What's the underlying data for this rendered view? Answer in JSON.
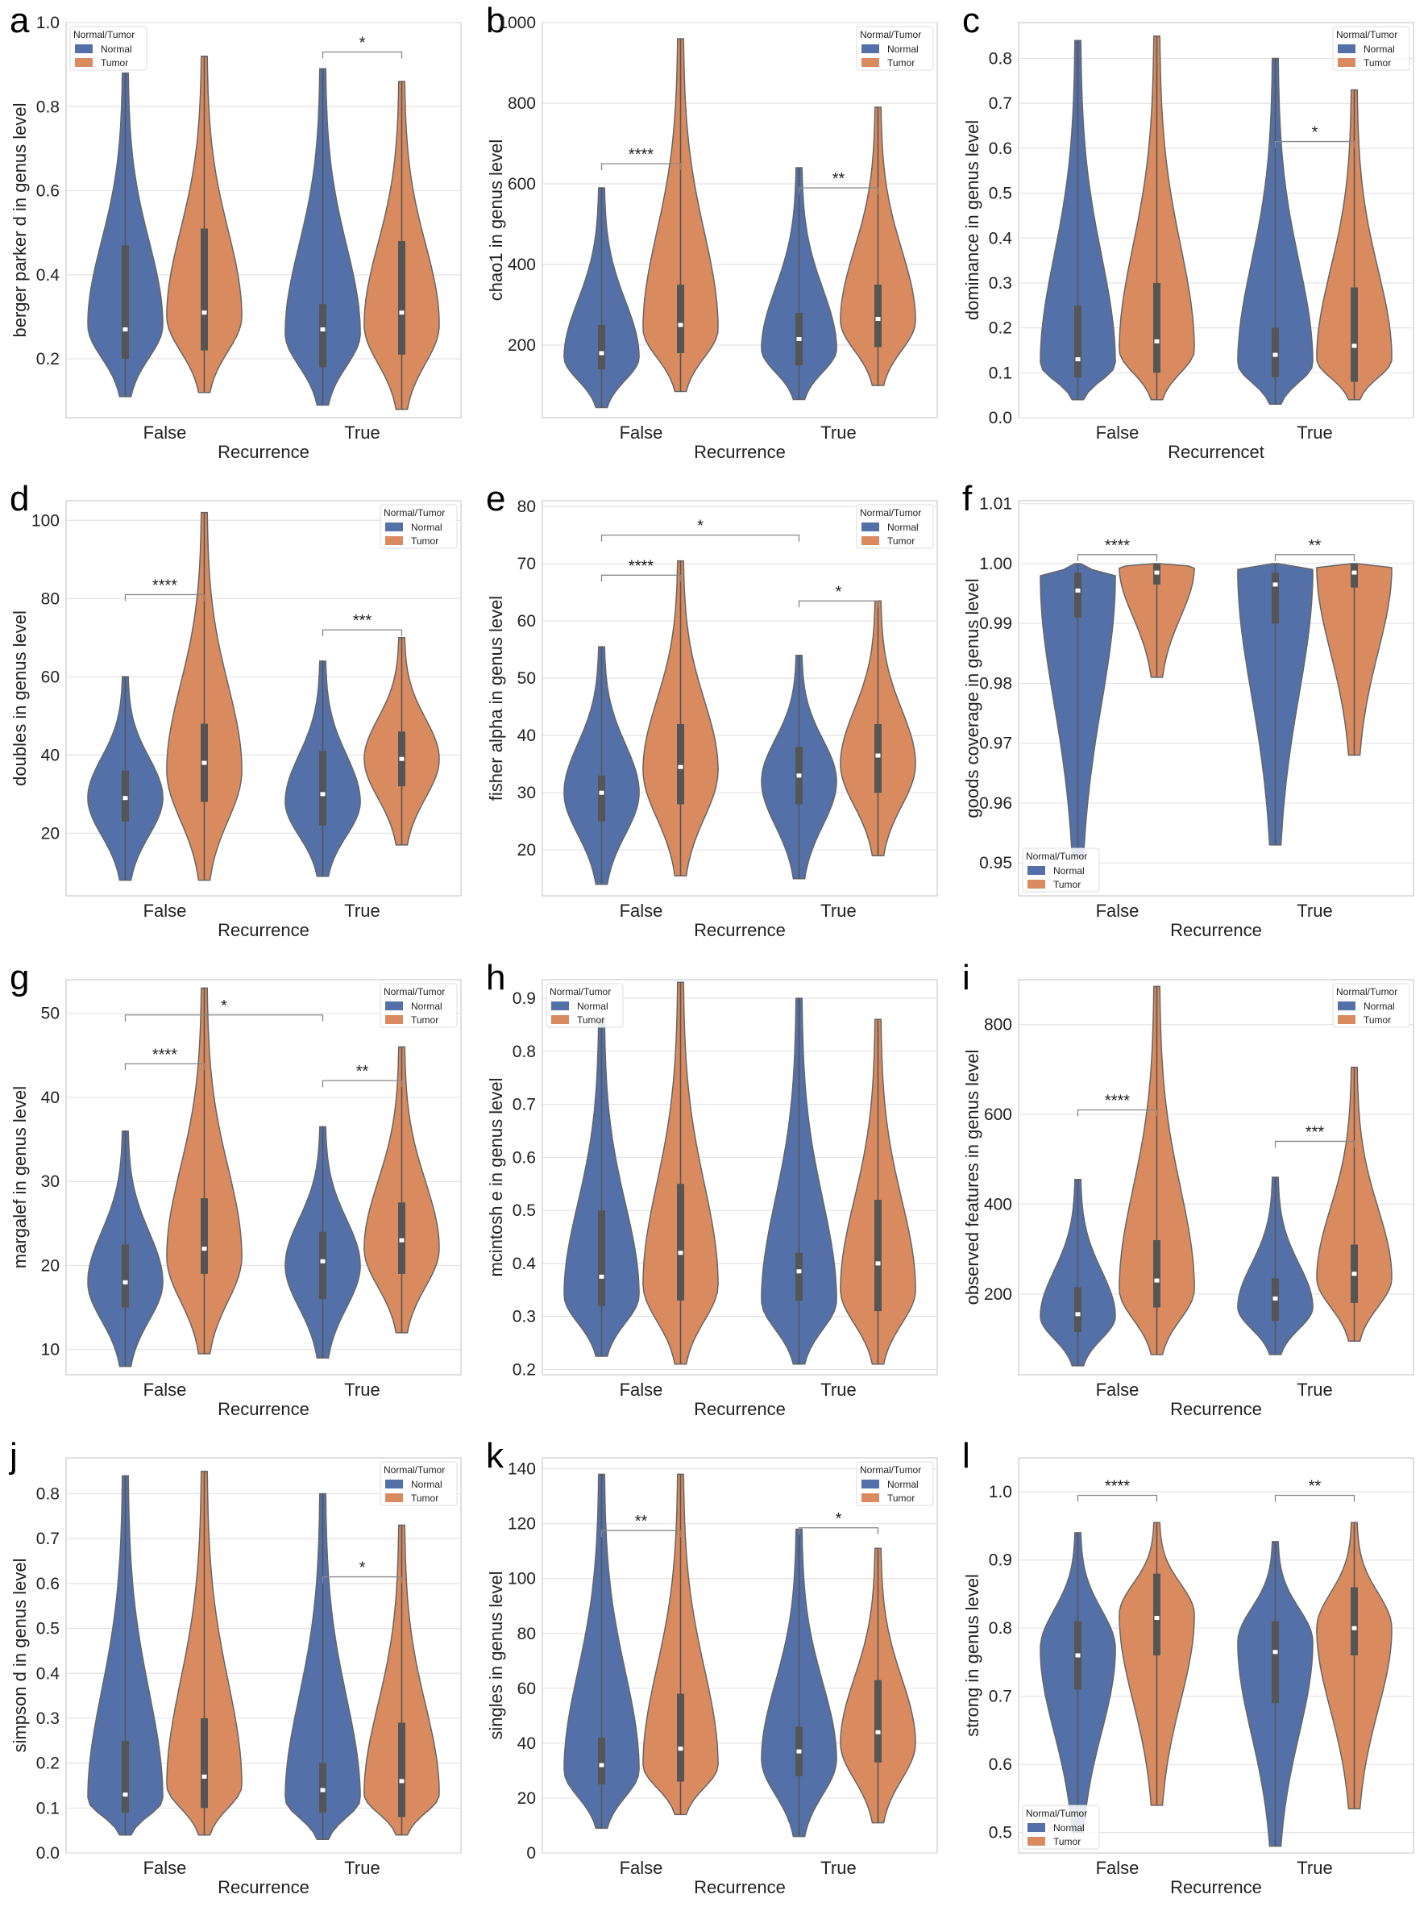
{
  "colors": {
    "normal": "#5470a8",
    "tumor": "#d98b5f",
    "edge": "#666666",
    "grid": "#e3e3e3",
    "frame": "#cccccc"
  },
  "legend": {
    "title": "Normal/Tumor",
    "items": [
      "Normal",
      "Tumor"
    ]
  },
  "chart_data": [
    {
      "letter": "a",
      "type": "violin",
      "ylabel": "berger parker d in genus level",
      "xlabel": "Recurrence",
      "categories": [
        "False",
        "True"
      ],
      "ylim": [
        0.06,
        1.0
      ],
      "yticks": [
        "1.0",
        "0.8",
        "0.6",
        "0.4",
        "0.2"
      ],
      "ytick_values": [
        1.0,
        0.8,
        0.6,
        0.4,
        0.2
      ],
      "legend_position": "top-left",
      "series": [
        {
          "name": "Normal",
          "cat": "False",
          "min": 0.11,
          "max": 0.88,
          "q1": 0.2,
          "median": 0.27,
          "q3": 0.47,
          "peak": 0.28
        },
        {
          "name": "Tumor",
          "cat": "False",
          "min": 0.12,
          "max": 0.92,
          "q1": 0.22,
          "median": 0.31,
          "q3": 0.51,
          "peak": 0.3
        },
        {
          "name": "Normal",
          "cat": "True",
          "min": 0.09,
          "max": 0.89,
          "q1": 0.18,
          "median": 0.27,
          "q3": 0.33,
          "peak": 0.26
        },
        {
          "name": "Tumor",
          "cat": "True",
          "min": 0.08,
          "max": 0.86,
          "q1": 0.21,
          "median": 0.31,
          "q3": 0.48,
          "peak": 0.28
        }
      ],
      "sig": [
        {
          "from": 2,
          "to": 3,
          "y": 0.93,
          "label": "*"
        }
      ]
    },
    {
      "letter": "b",
      "type": "violin",
      "ylabel": "chao1 in genus level",
      "xlabel": "Recurrence",
      "categories": [
        "False",
        "True"
      ],
      "ylim": [
        20,
        1000
      ],
      "yticks": [
        "1000",
        "800",
        "600",
        "400",
        "200"
      ],
      "ytick_values": [
        1000,
        800,
        600,
        400,
        200
      ],
      "legend_position": "top-right",
      "series": [
        {
          "name": "Normal",
          "cat": "False",
          "min": 45,
          "max": 590,
          "q1": 140,
          "median": 180,
          "q3": 250,
          "peak": 170
        },
        {
          "name": "Tumor",
          "cat": "False",
          "min": 85,
          "max": 960,
          "q1": 180,
          "median": 250,
          "q3": 350,
          "peak": 240
        },
        {
          "name": "Normal",
          "cat": "True",
          "min": 65,
          "max": 640,
          "q1": 150,
          "median": 215,
          "q3": 280,
          "peak": 190
        },
        {
          "name": "Tumor",
          "cat": "True",
          "min": 100,
          "max": 790,
          "q1": 195,
          "median": 265,
          "q3": 350,
          "peak": 260
        }
      ],
      "sig": [
        {
          "from": 0,
          "to": 1,
          "y": 650,
          "label": "****"
        },
        {
          "from": 2,
          "to": 3,
          "y": 590,
          "label": "**"
        }
      ]
    },
    {
      "letter": "c",
      "type": "violin",
      "ylabel": "dominance in genus level",
      "xlabel": "Recurrencet",
      "categories": [
        "False",
        "True"
      ],
      "ylim": [
        0.0,
        0.88
      ],
      "yticks": [
        "0.8",
        "0.7",
        "0.6",
        "0.5",
        "0.4",
        "0.3",
        "0.2",
        "0.1",
        "0.0"
      ],
      "ytick_values": [
        0.8,
        0.7,
        0.6,
        0.5,
        0.4,
        0.3,
        0.2,
        0.1,
        0.0
      ],
      "legend_position": "top-right",
      "series": [
        {
          "name": "Normal",
          "cat": "False",
          "min": 0.04,
          "max": 0.84,
          "q1": 0.09,
          "median": 0.13,
          "q3": 0.25,
          "peak": 0.12
        },
        {
          "name": "Tumor",
          "cat": "False",
          "min": 0.04,
          "max": 0.85,
          "q1": 0.1,
          "median": 0.17,
          "q3": 0.3,
          "peak": 0.15
        },
        {
          "name": "Normal",
          "cat": "True",
          "min": 0.03,
          "max": 0.8,
          "q1": 0.09,
          "median": 0.14,
          "q3": 0.2,
          "peak": 0.12
        },
        {
          "name": "Tumor",
          "cat": "True",
          "min": 0.04,
          "max": 0.73,
          "q1": 0.08,
          "median": 0.16,
          "q3": 0.29,
          "peak": 0.13
        }
      ],
      "sig": [
        {
          "from": 2,
          "to": 3,
          "y": 0.615,
          "label": "*"
        }
      ]
    },
    {
      "letter": "d",
      "type": "violin",
      "ylabel": "doubles in genus level",
      "xlabel": "Recurrence",
      "categories": [
        "False",
        "True"
      ],
      "ylim": [
        4,
        105
      ],
      "yticks": [
        "100",
        "80",
        "60",
        "40",
        "20"
      ],
      "ytick_values": [
        100,
        80,
        60,
        40,
        20
      ],
      "legend_position": "top-right",
      "series": [
        {
          "name": "Normal",
          "cat": "False",
          "min": 8,
          "max": 60,
          "q1": 23,
          "median": 29,
          "q3": 36,
          "peak": 29
        },
        {
          "name": "Tumor",
          "cat": "False",
          "min": 8,
          "max": 102,
          "q1": 28,
          "median": 38,
          "q3": 48,
          "peak": 36
        },
        {
          "name": "Normal",
          "cat": "True",
          "min": 9,
          "max": 64,
          "q1": 22,
          "median": 30,
          "q3": 41,
          "peak": 28
        },
        {
          "name": "Tumor",
          "cat": "True",
          "min": 17,
          "max": 70,
          "q1": 32,
          "median": 39,
          "q3": 46,
          "peak": 39
        }
      ],
      "sig": [
        {
          "from": 0,
          "to": 1,
          "y": 81,
          "label": "****"
        },
        {
          "from": 2,
          "to": 3,
          "y": 72,
          "label": "***"
        }
      ]
    },
    {
      "letter": "e",
      "type": "violin",
      "ylabel": "fisher alpha in genus level",
      "xlabel": "Recurrence",
      "categories": [
        "False",
        "True"
      ],
      "ylim": [
        12,
        81
      ],
      "yticks": [
        "80",
        "70",
        "60",
        "50",
        "40",
        "30",
        "20"
      ],
      "ytick_values": [
        80,
        70,
        60,
        50,
        40,
        30,
        20
      ],
      "legend_position": "top-right",
      "series": [
        {
          "name": "Normal",
          "cat": "False",
          "min": 14,
          "max": 55.5,
          "q1": 25,
          "median": 30,
          "q3": 33,
          "peak": 30
        },
        {
          "name": "Tumor",
          "cat": "False",
          "min": 15.5,
          "max": 70.5,
          "q1": 28,
          "median": 34.5,
          "q3": 42,
          "peak": 34
        },
        {
          "name": "Normal",
          "cat": "True",
          "min": 15,
          "max": 54,
          "q1": 28,
          "median": 33,
          "q3": 38,
          "peak": 32
        },
        {
          "name": "Tumor",
          "cat": "True",
          "min": 19,
          "max": 63.5,
          "q1": 30,
          "median": 36.5,
          "q3": 42,
          "peak": 35
        }
      ],
      "sig": [
        {
          "from": 0,
          "to": 2,
          "y": 75,
          "label": "*"
        },
        {
          "from": 0,
          "to": 1,
          "y": 68,
          "label": "****"
        },
        {
          "from": 2,
          "to": 3,
          "y": 63.5,
          "label": "*"
        }
      ]
    },
    {
      "letter": "f",
      "type": "violin",
      "ylabel": "goods coverage in genus level",
      "xlabel": "Recurrence",
      "categories": [
        "False",
        "True"
      ],
      "ylim": [
        0.9445,
        1.0105
      ],
      "yticks": [
        "1.01",
        "1.00",
        "0.99",
        "0.98",
        "0.97",
        "0.96",
        "0.95"
      ],
      "ytick_values": [
        1.01,
        1.0,
        0.99,
        0.98,
        0.97,
        0.96,
        0.95
      ],
      "legend_position": "bottom-left",
      "series": [
        {
          "name": "Normal",
          "cat": "False",
          "min": 0.951,
          "max": 1.0,
          "q1": 0.991,
          "median": 0.9955,
          "q3": 0.9985,
          "peak": 0.998
        },
        {
          "name": "Tumor",
          "cat": "False",
          "min": 0.981,
          "max": 1.0,
          "q1": 0.9965,
          "median": 0.9985,
          "q3": 1.0,
          "peak": 0.9995
        },
        {
          "name": "Normal",
          "cat": "True",
          "min": 0.953,
          "max": 1.0,
          "q1": 0.99,
          "median": 0.9965,
          "q3": 0.9985,
          "peak": 0.999
        },
        {
          "name": "Tumor",
          "cat": "True",
          "min": 0.968,
          "max": 1.0,
          "q1": 0.996,
          "median": 0.9985,
          "q3": 1.0,
          "peak": 0.9995
        }
      ],
      "sig": [
        {
          "from": 0,
          "to": 1,
          "y": 1.0015,
          "label": "****"
        },
        {
          "from": 2,
          "to": 3,
          "y": 1.0015,
          "label": "**"
        }
      ]
    },
    {
      "letter": "g",
      "type": "violin",
      "ylabel": "margalef in genus level",
      "xlabel": "Recurrence",
      "categories": [
        "False",
        "True"
      ],
      "ylim": [
        7,
        54
      ],
      "yticks": [
        "50",
        "40",
        "30",
        "20",
        "10"
      ],
      "ytick_values": [
        50,
        40,
        30,
        20,
        10
      ],
      "legend_position": "top-right",
      "series": [
        {
          "name": "Normal",
          "cat": "False",
          "min": 8,
          "max": 36,
          "q1": 15,
          "median": 18,
          "q3": 22.5,
          "peak": 18
        },
        {
          "name": "Tumor",
          "cat": "False",
          "min": 9.5,
          "max": 53,
          "q1": 19,
          "median": 22,
          "q3": 28,
          "peak": 21
        },
        {
          "name": "Normal",
          "cat": "True",
          "min": 9,
          "max": 36.5,
          "q1": 16,
          "median": 20.5,
          "q3": 24,
          "peak": 20
        },
        {
          "name": "Tumor",
          "cat": "True",
          "min": 12,
          "max": 46,
          "q1": 19,
          "median": 23,
          "q3": 27.5,
          "peak": 22
        }
      ],
      "sig": [
        {
          "from": 0,
          "to": 2,
          "y": 49.8,
          "label": "*"
        },
        {
          "from": 0,
          "to": 1,
          "y": 44,
          "label": "****"
        },
        {
          "from": 2,
          "to": 3,
          "y": 42,
          "label": "**"
        }
      ]
    },
    {
      "letter": "h",
      "type": "violin",
      "ylabel": "mcintosh e in genus level",
      "xlabel": "Recurrence",
      "categories": [
        "False",
        "True"
      ],
      "ylim": [
        0.19,
        0.935
      ],
      "yticks": [
        "0.9",
        "0.8",
        "0.7",
        "0.6",
        "0.5",
        "0.4",
        "0.3",
        "0.2"
      ],
      "ytick_values": [
        0.9,
        0.8,
        0.7,
        0.6,
        0.5,
        0.4,
        0.3,
        0.2
      ],
      "legend_position": "top-left",
      "series": [
        {
          "name": "Normal",
          "cat": "False",
          "min": 0.225,
          "max": 0.86,
          "q1": 0.32,
          "median": 0.375,
          "q3": 0.5,
          "peak": 0.34
        },
        {
          "name": "Tumor",
          "cat": "False",
          "min": 0.21,
          "max": 0.93,
          "q1": 0.33,
          "median": 0.42,
          "q3": 0.55,
          "peak": 0.36
        },
        {
          "name": "Normal",
          "cat": "True",
          "min": 0.21,
          "max": 0.9,
          "q1": 0.33,
          "median": 0.385,
          "q3": 0.42,
          "peak": 0.33
        },
        {
          "name": "Tumor",
          "cat": "True",
          "min": 0.21,
          "max": 0.86,
          "q1": 0.31,
          "median": 0.4,
          "q3": 0.52,
          "peak": 0.35
        }
      ],
      "sig": []
    },
    {
      "letter": "i",
      "type": "violin",
      "ylabel": "observed features in genus level",
      "xlabel": "Recurrence",
      "categories": [
        "False",
        "True"
      ],
      "ylim": [
        20,
        900
      ],
      "yticks": [
        "800",
        "600",
        "400",
        "200"
      ],
      "ytick_values": [
        800,
        600,
        400,
        200
      ],
      "legend_position": "top-right",
      "series": [
        {
          "name": "Normal",
          "cat": "False",
          "min": 40,
          "max": 455,
          "q1": 115,
          "median": 155,
          "q3": 215,
          "peak": 150
        },
        {
          "name": "Tumor",
          "cat": "False",
          "min": 65,
          "max": 885,
          "q1": 170,
          "median": 230,
          "q3": 320,
          "peak": 210
        },
        {
          "name": "Normal",
          "cat": "True",
          "min": 65,
          "max": 460,
          "q1": 140,
          "median": 190,
          "q3": 235,
          "peak": 170
        },
        {
          "name": "Tumor",
          "cat": "True",
          "min": 95,
          "max": 705,
          "q1": 180,
          "median": 245,
          "q3": 310,
          "peak": 235
        }
      ],
      "sig": [
        {
          "from": 0,
          "to": 1,
          "y": 610,
          "label": "****"
        },
        {
          "from": 2,
          "to": 3,
          "y": 540,
          "label": "***"
        }
      ]
    },
    {
      "letter": "j",
      "type": "violin",
      "ylabel": "simpson d in genus level",
      "xlabel": "Recurrence",
      "categories": [
        "False",
        "True"
      ],
      "ylim": [
        0.0,
        0.88
      ],
      "yticks": [
        "0.8",
        "0.7",
        "0.6",
        "0.5",
        "0.4",
        "0.3",
        "0.2",
        "0.1",
        "0.0"
      ],
      "ytick_values": [
        0.8,
        0.7,
        0.6,
        0.5,
        0.4,
        0.3,
        0.2,
        0.1,
        0.0
      ],
      "legend_position": "top-right",
      "series": [
        {
          "name": "Normal",
          "cat": "False",
          "min": 0.04,
          "max": 0.84,
          "q1": 0.09,
          "median": 0.13,
          "q3": 0.25,
          "peak": 0.12
        },
        {
          "name": "Tumor",
          "cat": "False",
          "min": 0.04,
          "max": 0.85,
          "q1": 0.1,
          "median": 0.17,
          "q3": 0.3,
          "peak": 0.15
        },
        {
          "name": "Normal",
          "cat": "True",
          "min": 0.03,
          "max": 0.8,
          "q1": 0.09,
          "median": 0.14,
          "q3": 0.2,
          "peak": 0.12
        },
        {
          "name": "Tumor",
          "cat": "True",
          "min": 0.04,
          "max": 0.73,
          "q1": 0.08,
          "median": 0.16,
          "q3": 0.29,
          "peak": 0.13
        }
      ],
      "sig": [
        {
          "from": 2,
          "to": 3,
          "y": 0.615,
          "label": "*"
        }
      ]
    },
    {
      "letter": "k",
      "type": "violin",
      "ylabel": "singles in genus level",
      "xlabel": "Recurrence",
      "categories": [
        "False",
        "True"
      ],
      "ylim": [
        0,
        144
      ],
      "yticks": [
        "140",
        "120",
        "100",
        "80",
        "60",
        "40",
        "20",
        "0"
      ],
      "ytick_values": [
        140,
        120,
        100,
        80,
        60,
        40,
        20,
        0
      ],
      "legend_position": "top-right",
      "series": [
        {
          "name": "Normal",
          "cat": "False",
          "min": 9,
          "max": 138,
          "q1": 25,
          "median": 32,
          "q3": 42,
          "peak": 30
        },
        {
          "name": "Tumor",
          "cat": "False",
          "min": 14,
          "max": 138,
          "q1": 26,
          "median": 38,
          "q3": 58,
          "peak": 32
        },
        {
          "name": "Normal",
          "cat": "True",
          "min": 6,
          "max": 118,
          "q1": 28,
          "median": 37,
          "q3": 46,
          "peak": 34
        },
        {
          "name": "Tumor",
          "cat": "True",
          "min": 11,
          "max": 111,
          "q1": 33,
          "median": 44,
          "q3": 63,
          "peak": 40
        }
      ],
      "sig": [
        {
          "from": 0,
          "to": 1,
          "y": 117.5,
          "label": "**"
        },
        {
          "from": 2,
          "to": 3,
          "y": 118.5,
          "label": "*"
        }
      ]
    },
    {
      "letter": "l",
      "type": "violin",
      "ylabel": "strong in genus level",
      "xlabel": "Recurrence",
      "categories": [
        "False",
        "True"
      ],
      "ylim": [
        0.47,
        1.05
      ],
      "yticks": [
        "1.0",
        "0.9",
        "0.8",
        "0.7",
        "0.6",
        "0.5"
      ],
      "ytick_values": [
        1.0,
        0.9,
        0.8,
        0.7,
        0.6,
        0.5
      ],
      "legend_position": "bottom-left",
      "series": [
        {
          "name": "Normal",
          "cat": "False",
          "min": 0.5,
          "max": 0.94,
          "q1": 0.71,
          "median": 0.76,
          "q3": 0.81,
          "peak": 0.77
        },
        {
          "name": "Tumor",
          "cat": "False",
          "min": 0.54,
          "max": 0.955,
          "q1": 0.76,
          "median": 0.815,
          "q3": 0.88,
          "peak": 0.82
        },
        {
          "name": "Normal",
          "cat": "True",
          "min": 0.48,
          "max": 0.927,
          "q1": 0.69,
          "median": 0.765,
          "q3": 0.81,
          "peak": 0.78
        },
        {
          "name": "Tumor",
          "cat": "True",
          "min": 0.535,
          "max": 0.955,
          "q1": 0.76,
          "median": 0.8,
          "q3": 0.86,
          "peak": 0.8
        }
      ],
      "sig": [
        {
          "from": 0,
          "to": 1,
          "y": 0.995,
          "label": "****"
        },
        {
          "from": 2,
          "to": 3,
          "y": 0.995,
          "label": "**"
        }
      ]
    }
  ]
}
